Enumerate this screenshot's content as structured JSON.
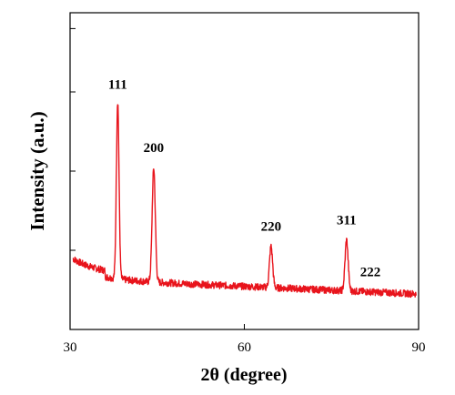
{
  "chart_data": {
    "type": "line",
    "title": "",
    "xlabel": "2θ (degree)",
    "ylabel": "Intensity (a.u.)",
    "xlim": [
      30,
      90
    ],
    "x_ticks": [
      "30",
      "60",
      "90"
    ],
    "grid": false,
    "legend": "none",
    "colors": {
      "series": "#e8141c",
      "axes": "#000000"
    },
    "series": [
      {
        "peaks": [
          {
            "x": 38.2,
            "label": "111"
          },
          {
            "x": 44.4,
            "label": "200"
          },
          {
            "x": 64.6,
            "label": "220"
          },
          {
            "x": 77.6,
            "label": "311"
          },
          {
            "x": 81.7,
            "label": "222"
          }
        ]
      }
    ]
  }
}
